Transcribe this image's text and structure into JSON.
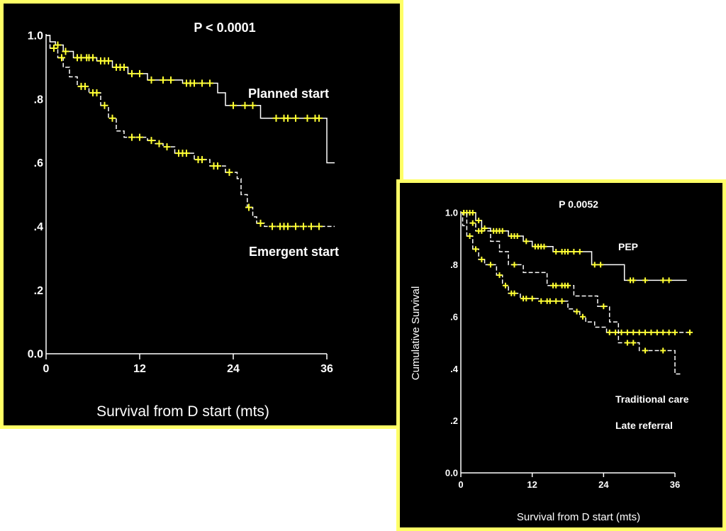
{
  "chart_data": [
    {
      "type": "line",
      "subtype": "kaplan-meier",
      "title": "P < 0.0001",
      "xlabel": "Survival from D start (mts)",
      "ylabel": "",
      "xlim": [
        0,
        36
      ],
      "ylim": [
        0,
        1
      ],
      "x_ticks": [
        0,
        12,
        24,
        36
      ],
      "x_tick_labels": [
        "0",
        "12",
        "24",
        "36"
      ],
      "y_ticks": [
        0,
        0.2,
        0.4,
        0.6,
        0.8,
        1.0
      ],
      "y_tick_labels": [
        "0.0",
        ".2",
        ".4",
        ".6",
        ".8",
        "1.0"
      ],
      "series": [
        {
          "name": "Planned start",
          "style": "solid",
          "steps": [
            [
              0,
              1.0
            ],
            [
              0.5,
              0.98
            ],
            [
              1.2,
              0.97
            ],
            [
              2.2,
              0.95
            ],
            [
              3.5,
              0.93
            ],
            [
              6.5,
              0.92
            ],
            [
              8.5,
              0.9
            ],
            [
              10.5,
              0.88
            ],
            [
              13,
              0.86
            ],
            [
              17.5,
              0.85
            ],
            [
              22,
              0.82
            ],
            [
              23,
              0.78
            ],
            [
              27.5,
              0.74
            ],
            [
              36,
              0.6
            ],
            [
              37,
              0.6
            ]
          ],
          "censored": [
            [
              1.5,
              0.97
            ],
            [
              2.5,
              0.95
            ],
            [
              4,
              0.93
            ],
            [
              4.5,
              0.93
            ],
            [
              5.2,
              0.93
            ],
            [
              5.5,
              0.93
            ],
            [
              6,
              0.93
            ],
            [
              7,
              0.92
            ],
            [
              7.5,
              0.92
            ],
            [
              8,
              0.92
            ],
            [
              9,
              0.9
            ],
            [
              9.5,
              0.9
            ],
            [
              10,
              0.9
            ],
            [
              11,
              0.88
            ],
            [
              12,
              0.88
            ],
            [
              13.5,
              0.86
            ],
            [
              15,
              0.86
            ],
            [
              16,
              0.86
            ],
            [
              18,
              0.85
            ],
            [
              18.5,
              0.85
            ],
            [
              19,
              0.85
            ],
            [
              20,
              0.85
            ],
            [
              21,
              0.85
            ],
            [
              24,
              0.78
            ],
            [
              25.5,
              0.78
            ],
            [
              26.5,
              0.78
            ],
            [
              29.5,
              0.74
            ],
            [
              30.5,
              0.74
            ],
            [
              31,
              0.74
            ],
            [
              32,
              0.74
            ],
            [
              33.5,
              0.74
            ],
            [
              34.5,
              0.74
            ],
            [
              35,
              0.74
            ]
          ]
        },
        {
          "name": "Emergent start",
          "style": "dashed",
          "steps": [
            [
              0,
              1.0
            ],
            [
              0.5,
              0.96
            ],
            [
              1.5,
              0.93
            ],
            [
              2.2,
              0.9
            ],
            [
              3,
              0.87
            ],
            [
              4,
              0.84
            ],
            [
              5.5,
              0.82
            ],
            [
              7,
              0.78
            ],
            [
              8,
              0.74
            ],
            [
              9,
              0.7
            ],
            [
              10,
              0.68
            ],
            [
              13,
              0.67
            ],
            [
              14,
              0.66
            ],
            [
              15,
              0.65
            ],
            [
              16.5,
              0.63
            ],
            [
              19,
              0.61
            ],
            [
              21,
              0.59
            ],
            [
              23,
              0.57
            ],
            [
              24.5,
              0.55
            ],
            [
              25,
              0.5
            ],
            [
              25.8,
              0.46
            ],
            [
              26.5,
              0.43
            ],
            [
              27,
              0.41
            ],
            [
              28,
              0.4
            ],
            [
              36,
              0.4
            ],
            [
              37,
              0.4
            ]
          ],
          "censored": [
            [
              1,
              0.96
            ],
            [
              2,
              0.93
            ],
            [
              4.5,
              0.84
            ],
            [
              5,
              0.84
            ],
            [
              6,
              0.82
            ],
            [
              6.5,
              0.82
            ],
            [
              7.5,
              0.78
            ],
            [
              8.5,
              0.74
            ],
            [
              11,
              0.68
            ],
            [
              12,
              0.68
            ],
            [
              13.5,
              0.67
            ],
            [
              14.5,
              0.66
            ],
            [
              15.5,
              0.65
            ],
            [
              17,
              0.63
            ],
            [
              17.5,
              0.63
            ],
            [
              18,
              0.63
            ],
            [
              19.5,
              0.61
            ],
            [
              20,
              0.61
            ],
            [
              21.5,
              0.59
            ],
            [
              22,
              0.59
            ],
            [
              23.5,
              0.57
            ],
            [
              26,
              0.46
            ],
            [
              27.5,
              0.41
            ],
            [
              29,
              0.4
            ],
            [
              30,
              0.4
            ],
            [
              30.5,
              0.4
            ],
            [
              31,
              0.4
            ],
            [
              32,
              0.4
            ],
            [
              33,
              0.4
            ],
            [
              34,
              0.4
            ],
            [
              35,
              0.4
            ]
          ]
        }
      ],
      "annotations": [
        "Planned start",
        "Emergent start"
      ]
    },
    {
      "type": "line",
      "subtype": "kaplan-meier",
      "title": "P 0.0052",
      "xlabel": "Survival from D start (mts)",
      "ylabel": "Cumulative Survival",
      "xlim": [
        0,
        36
      ],
      "ylim": [
        0,
        1
      ],
      "x_ticks": [
        0,
        12,
        24,
        36
      ],
      "x_tick_labels": [
        "0",
        "12",
        "24",
        "36"
      ],
      "y_ticks": [
        0,
        0.2,
        0.4,
        0.6,
        0.8,
        1.0
      ],
      "y_tick_labels": [
        "0.0",
        ".2",
        ".4",
        ".6",
        ".8",
        "1.0"
      ],
      "series": [
        {
          "name": "PEP",
          "style": "solid",
          "steps": [
            [
              0,
              1.0
            ],
            [
              2.5,
              0.97
            ],
            [
              3.5,
              0.94
            ],
            [
              5,
              0.93
            ],
            [
              8,
              0.91
            ],
            [
              10.5,
              0.89
            ],
            [
              12,
              0.87
            ],
            [
              15.5,
              0.85
            ],
            [
              22,
              0.8
            ],
            [
              27.5,
              0.74
            ],
            [
              38,
              0.74
            ]
          ],
          "censored": [
            [
              0.5,
              1.0
            ],
            [
              1,
              1.0
            ],
            [
              1.5,
              1.0
            ],
            [
              2,
              1.0
            ],
            [
              3,
              0.97
            ],
            [
              4,
              0.94
            ],
            [
              5.5,
              0.93
            ],
            [
              6,
              0.93
            ],
            [
              6.5,
              0.93
            ],
            [
              7,
              0.93
            ],
            [
              8.5,
              0.91
            ],
            [
              9,
              0.91
            ],
            [
              9.5,
              0.91
            ],
            [
              11,
              0.89
            ],
            [
              12.5,
              0.87
            ],
            [
              13,
              0.87
            ],
            [
              13.5,
              0.87
            ],
            [
              14,
              0.87
            ],
            [
              16,
              0.85
            ],
            [
              17,
              0.85
            ],
            [
              17.5,
              0.85
            ],
            [
              18,
              0.85
            ],
            [
              19,
              0.85
            ],
            [
              20,
              0.85
            ],
            [
              22.5,
              0.8
            ],
            [
              23.5,
              0.8
            ],
            [
              28.5,
              0.74
            ],
            [
              29,
              0.74
            ],
            [
              31,
              0.74
            ],
            [
              34,
              0.74
            ],
            [
              35,
              0.74
            ]
          ]
        },
        {
          "name": "Traditional care",
          "style": "dashed",
          "steps": [
            [
              0,
              1.0
            ],
            [
              0.3,
              0.95
            ],
            [
              1,
              0.91
            ],
            [
              2,
              0.86
            ],
            [
              3,
              0.82
            ],
            [
              4,
              0.8
            ],
            [
              6,
              0.76
            ],
            [
              7,
              0.72
            ],
            [
              8,
              0.69
            ],
            [
              10,
              0.67
            ],
            [
              13,
              0.66
            ],
            [
              18,
              0.63
            ],
            [
              19,
              0.62
            ],
            [
              20,
              0.6
            ],
            [
              21,
              0.58
            ],
            [
              22.5,
              0.56
            ],
            [
              24.5,
              0.54
            ],
            [
              38.5,
              0.54
            ]
          ],
          "censored": [
            [
              1.5,
              0.91
            ],
            [
              2.5,
              0.86
            ],
            [
              3.5,
              0.82
            ],
            [
              5,
              0.8
            ],
            [
              6.5,
              0.76
            ],
            [
              7.5,
              0.72
            ],
            [
              8.5,
              0.69
            ],
            [
              9,
              0.69
            ],
            [
              10.5,
              0.67
            ],
            [
              11,
              0.67
            ],
            [
              12,
              0.67
            ],
            [
              13.5,
              0.66
            ],
            [
              14.5,
              0.66
            ],
            [
              15,
              0.66
            ],
            [
              16,
              0.66
            ],
            [
              17,
              0.66
            ],
            [
              19.5,
              0.62
            ],
            [
              20.5,
              0.6
            ],
            [
              25,
              0.54
            ],
            [
              26,
              0.54
            ],
            [
              27,
              0.54
            ],
            [
              28,
              0.54
            ],
            [
              29,
              0.54
            ],
            [
              30,
              0.54
            ],
            [
              31,
              0.54
            ],
            [
              32,
              0.54
            ],
            [
              33,
              0.54
            ],
            [
              34,
              0.54
            ],
            [
              35,
              0.54
            ],
            [
              36,
              0.54
            ],
            [
              38.5,
              0.54
            ]
          ]
        },
        {
          "name": "Late referral",
          "style": "dashed",
          "steps": [
            [
              0,
              1.0
            ],
            [
              1,
              0.96
            ],
            [
              2.5,
              0.93
            ],
            [
              5,
              0.89
            ],
            [
              6.5,
              0.85
            ],
            [
              8,
              0.8
            ],
            [
              10.5,
              0.77
            ],
            [
              14.5,
              0.72
            ],
            [
              19,
              0.68
            ],
            [
              23,
              0.64
            ],
            [
              25,
              0.58
            ],
            [
              26.5,
              0.5
            ],
            [
              30,
              0.47
            ],
            [
              36,
              0.38
            ],
            [
              37,
              0.38
            ]
          ],
          "censored": [
            [
              0.5,
              1.0
            ],
            [
              2,
              0.96
            ],
            [
              3,
              0.93
            ],
            [
              3.5,
              0.93
            ],
            [
              9,
              0.8
            ],
            [
              15.5,
              0.72
            ],
            [
              16,
              0.72
            ],
            [
              17,
              0.72
            ],
            [
              17.5,
              0.72
            ],
            [
              18,
              0.72
            ],
            [
              24,
              0.64
            ],
            [
              28,
              0.5
            ],
            [
              29,
              0.5
            ],
            [
              31,
              0.47
            ],
            [
              34,
              0.47
            ]
          ]
        }
      ],
      "annotations": [
        "PEP",
        "Traditional care",
        "Late referral"
      ]
    }
  ]
}
